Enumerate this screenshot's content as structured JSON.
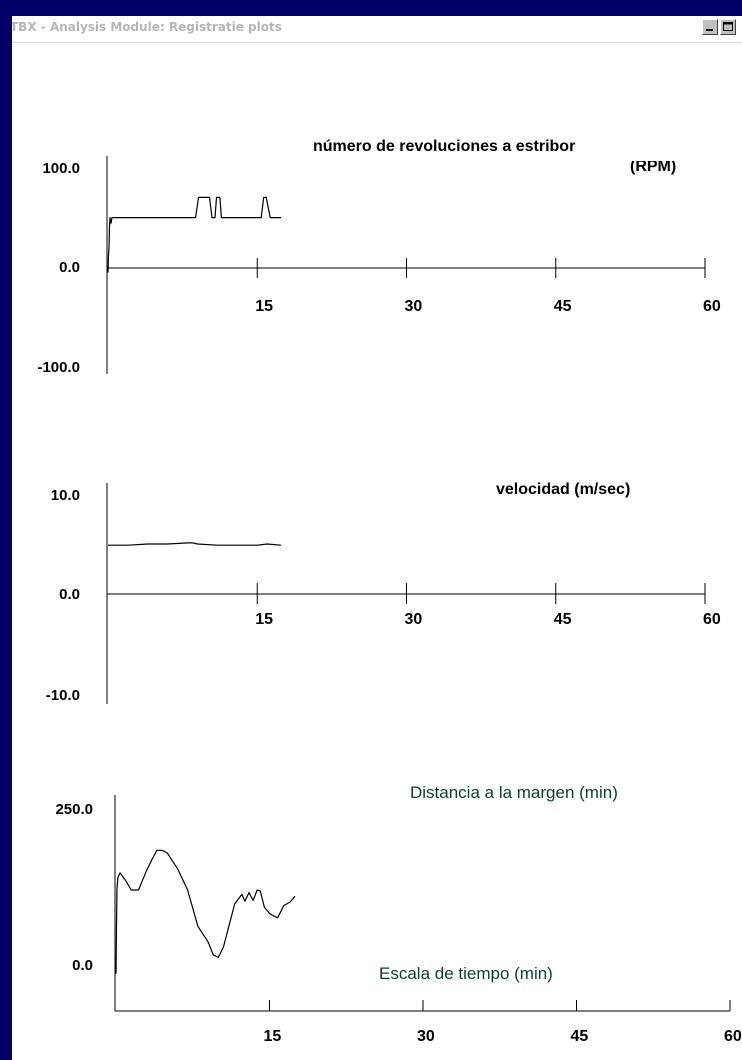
{
  "window": {
    "title": "TBX - Analysis  Module: Registratie plots",
    "controls": [
      "minimize-icon",
      "maximize-icon"
    ]
  },
  "chart_data": [
    {
      "type": "line",
      "title": "número de revoluciones a estribor",
      "title_line2": "(RPM)",
      "ylim": [
        -100,
        100
      ],
      "yticks": [
        "100.0",
        "0.0",
        "-100.0"
      ],
      "xlim": [
        0,
        60
      ],
      "xticks": [
        "15",
        "30",
        "45",
        "60"
      ],
      "series": [
        {
          "x": [
            0.0,
            0.05,
            0.1,
            0.15,
            0.2,
            0.3,
            0.4,
            4,
            8.8,
            9.1,
            9.3,
            10.2,
            10.45,
            10.75,
            10.9,
            11.25,
            11.4,
            11.75,
            11.95,
            12.3,
            15.4,
            15.65,
            15.9,
            16.3,
            16.55,
            16.8,
            17.4
          ],
          "y": [
            -4,
            12,
            18,
            37,
            45,
            40,
            45,
            45,
            45,
            63,
            63,
            63,
            45,
            45,
            63,
            63,
            45,
            45,
            45,
            45,
            45,
            63,
            63,
            45,
            45,
            45,
            45
          ]
        }
      ]
    },
    {
      "type": "line",
      "title": "velocidad (m/sec)",
      "ylim": [
        -10,
        10
      ],
      "yticks": [
        "10.0",
        "0.0",
        "-10.0"
      ],
      "xlim": [
        0,
        60
      ],
      "xticks": [
        "15",
        "30",
        "45",
        "60"
      ],
      "series": [
        {
          "x": [
            0.0,
            2.0,
            4.0,
            6.0,
            8.0,
            8.5,
            9.0,
            11.0,
            13.0,
            15.0,
            16.0,
            17.4
          ],
          "y": [
            4.4,
            4.4,
            4.5,
            4.5,
            4.6,
            4.6,
            4.5,
            4.4,
            4.4,
            4.4,
            4.5,
            4.4
          ]
        }
      ]
    },
    {
      "type": "line",
      "title": "Distancia a la margen (min)",
      "annotation": "Escala de tiempo (min)",
      "ylim": [
        0,
        250
      ],
      "yticks": [
        "250.0",
        "0.0"
      ],
      "xlim": [
        0,
        60
      ],
      "xticks": [
        "15",
        "30",
        "45",
        "60"
      ],
      "series": [
        {
          "x": [
            0.0,
            0.05,
            0.1,
            0.2,
            0.4,
            1.0,
            1.5,
            2.2,
            3.0,
            3.5,
            4.0,
            4.5,
            5.0,
            6.0,
            7.0,
            8.0,
            9.0,
            9.5,
            10.0,
            10.5,
            11.0,
            11.6,
            12.3,
            12.6,
            13.0,
            13.4,
            13.8,
            14.1,
            14.5,
            15.0,
            15.4,
            15.8,
            16.4,
            17.0,
            17.5
          ],
          "y": [
            43,
            100,
            143,
            155,
            160,
            150,
            140,
            140,
            163,
            175,
            186,
            186,
            183,
            165,
            140,
            98,
            80,
            65,
            62,
            74,
            97,
            124,
            135,
            127,
            137,
            128,
            140,
            139,
            120,
            113,
            110,
            108,
            122,
            126,
            133
          ]
        }
      ]
    }
  ]
}
